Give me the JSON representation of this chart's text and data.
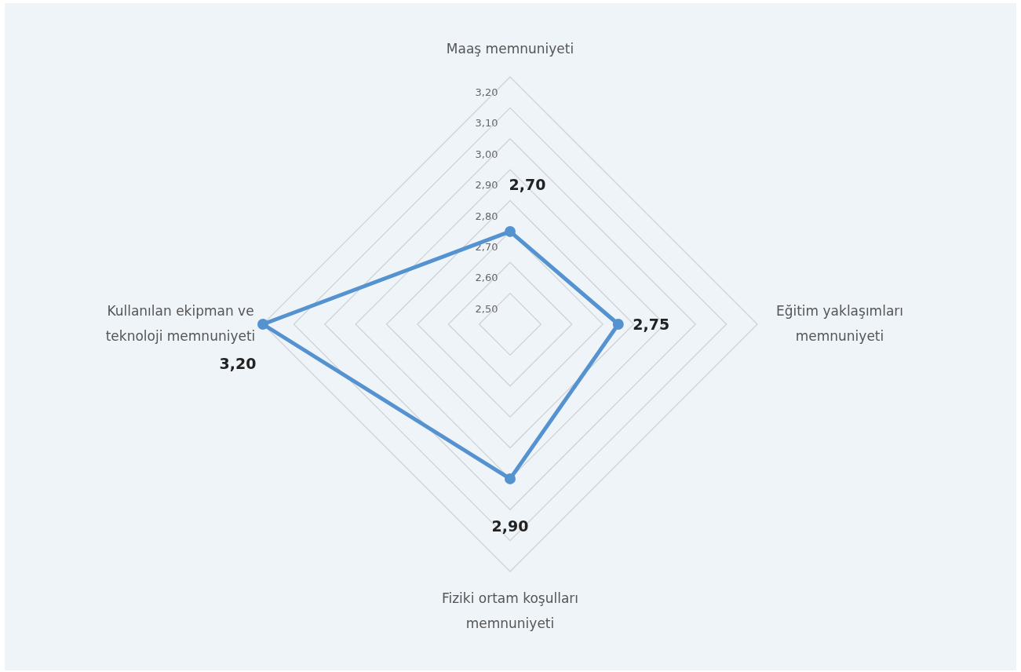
{
  "chart_data": {
    "type": "radar",
    "categories": [
      "Maaş memnuniyeti",
      "Eğitim yaklaşımları memnuniyeti",
      "Fiziki ortam koşulları memnuniyeti",
      "Kullanılan ekipman ve teknoloji memnuniyeti"
    ],
    "series": [
      {
        "color": "#5592d0",
        "values": [
          2.7,
          2.75,
          2.9,
          3.2
        ],
        "value_labels": [
          "2,70",
          "2,75",
          "2,90",
          "3,20"
        ]
      }
    ],
    "ylim": [
      2.4,
      3.2
    ],
    "yticks": [
      {
        "value": 2.5,
        "label": "2,50"
      },
      {
        "value": 2.6,
        "label": "2,60"
      },
      {
        "value": 2.7,
        "label": "2,70"
      },
      {
        "value": 2.8,
        "label": "2,80"
      },
      {
        "value": 2.9,
        "label": "2,90"
      },
      {
        "value": 3.0,
        "label": "3,00"
      },
      {
        "value": 3.1,
        "label": "3,10"
      },
      {
        "value": 3.2,
        "label": "3,20"
      }
    ],
    "grid": true,
    "marker": "circle"
  }
}
